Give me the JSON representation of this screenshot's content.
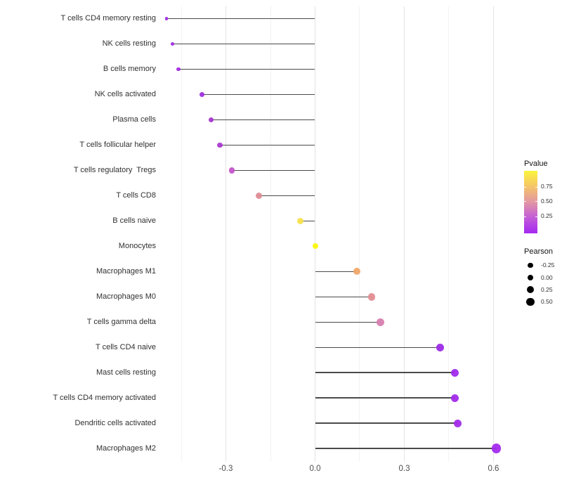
{
  "chart_data": {
    "type": "scatter",
    "variant": "lollipop",
    "title": "",
    "xlabel": "",
    "ylabel": "",
    "xlim": [
      -0.52,
      0.68
    ],
    "grid": "on",
    "x_ticks": [
      -0.3,
      0.0,
      0.3,
      0.6
    ],
    "x_tick_labels": [
      "-0.3",
      "0.0",
      "0.3",
      "0.6"
    ],
    "x_minor_ticks": [
      -0.45,
      -0.15,
      0.15,
      0.45
    ],
    "rows": [
      {
        "label": "T cells CD4 memory resting",
        "pearson": -0.5,
        "color": "#9f2be2",
        "size": 4.5
      },
      {
        "label": "NK cells resting",
        "pearson": -0.48,
        "color": "#a02be2",
        "size": 5.0
      },
      {
        "label": "B cells memory",
        "pearson": -0.46,
        "color": "#a12be0",
        "size": 5.5
      },
      {
        "label": "NK cells activated",
        "pearson": -0.38,
        "color": "#9e30dc",
        "size": 7.0
      },
      {
        "label": "Plasma cells",
        "pearson": -0.35,
        "color": "#a837d2",
        "size": 7.5
      },
      {
        "label": "T cells follicular helper",
        "pearson": -0.32,
        "color": "#a93bce",
        "size": 7.5
      },
      {
        "label": "T cells regulatory  Tregs",
        "pearson": -0.28,
        "color": "#c455cb",
        "size": 8.5
      },
      {
        "label": "T cells CD8",
        "pearson": -0.19,
        "color": "#de8c96",
        "size": 9.0
      },
      {
        "label": "B cells naive",
        "pearson": -0.05,
        "color": "#f8e14b",
        "size": 9.0
      },
      {
        "label": "Monocytes",
        "pearson": 0.0,
        "color": "#fbf70f",
        "size": 8.0
      },
      {
        "label": "Macrophages M1",
        "pearson": 0.14,
        "color": "#f0a869",
        "size": 10.0
      },
      {
        "label": "Macrophages M0",
        "pearson": 0.19,
        "color": "#e18d90",
        "size": 10.5
      },
      {
        "label": "T cells gamma delta",
        "pearson": 0.22,
        "color": "#d77fb0",
        "size": 10.7
      },
      {
        "label": "T cells CD4 naive",
        "pearson": 0.42,
        "color": "#9d2be8",
        "size": 10.7
      },
      {
        "label": "Mast cells resting",
        "pearson": 0.47,
        "color": "#a02bec",
        "size": 11.0
      },
      {
        "label": "T cells CD4 memory activated",
        "pearson": 0.47,
        "color": "#a22bea",
        "size": 11.0
      },
      {
        "label": "Dendritic cells activated",
        "pearson": 0.48,
        "color": "#a32bea",
        "size": 11.3
      },
      {
        "label": "Macrophages M2",
        "pearson": 0.61,
        "color": "#a42bee",
        "size": 13.5
      }
    ],
    "legends": {
      "pvalue": {
        "title": "Pvalue",
        "tick_labels": [
          "0.75",
          "0.50",
          "0.25"
        ],
        "gradient_top_color": "#fbf53c",
        "gradient_mid_color": "#e296a4",
        "gradient_bottom_color": "#a328f2"
      },
      "pearson": {
        "title": "Pearson",
        "items": [
          {
            "label": "-0.25",
            "size": 7.3
          },
          {
            "label": "0.00",
            "size": 8.7
          },
          {
            "label": "0.25",
            "size": 10.0
          },
          {
            "label": "0.50",
            "size": 11.3
          }
        ]
      }
    }
  }
}
